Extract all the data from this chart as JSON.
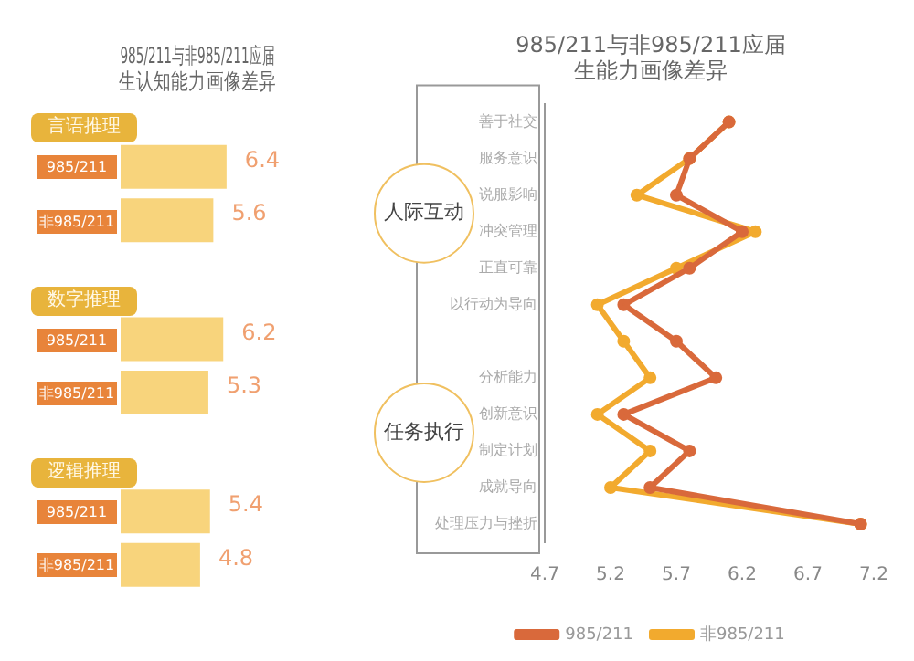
{
  "chart_data": [
    {
      "type": "bar",
      "orientation": "horizontal",
      "title": "985/211与非985/211应届生认知能力画像差异",
      "categories": [
        "言语推理",
        "数字推理",
        "逻辑推理"
      ],
      "data_labels": true,
      "legend": false,
      "grid": false,
      "series": [
        {
          "name": "985/211",
          "color": "#f8d47c",
          "values": [
            6.4,
            6.2,
            5.4
          ]
        },
        {
          "name": "非985/211",
          "color": "#f8d47c",
          "values": [
            5.6,
            5.3,
            4.8
          ]
        }
      ]
    },
    {
      "type": "line",
      "orientation": "horizontal",
      "title": "985/211与非985/211应届生能力画像差异",
      "categories": [
        "善于社交",
        "服务意识",
        "说服影响",
        "冲突管理",
        "正直可靠",
        "以行动为导向",
        null,
        "分析能力",
        "创新意识",
        "制定计划",
        "成就导向",
        "处理压力与挫折"
      ],
      "xlim": [
        4.7,
        7.2
      ],
      "xticks": [
        4.7,
        5.2,
        5.7,
        6.2,
        6.7,
        7.2
      ],
      "legend": "bottom",
      "grid": false,
      "marker": "circle",
      "line_style": "solid",
      "annotations": [
        "人际互动",
        "任务执行"
      ],
      "series": [
        {
          "name": "985/211",
          "color": "#d9693b",
          "values": [
            6.1,
            5.8,
            5.7,
            6.2,
            5.8,
            5.3,
            5.7,
            6.0,
            5.3,
            5.8,
            5.5,
            7.1
          ]
        },
        {
          "name": "非985/211",
          "color": "#f2aa2e",
          "values": [
            6.1,
            5.8,
            5.4,
            6.3,
            5.7,
            5.1,
            5.3,
            5.5,
            5.1,
            5.5,
            5.2,
            7.1
          ]
        }
      ]
    }
  ]
}
